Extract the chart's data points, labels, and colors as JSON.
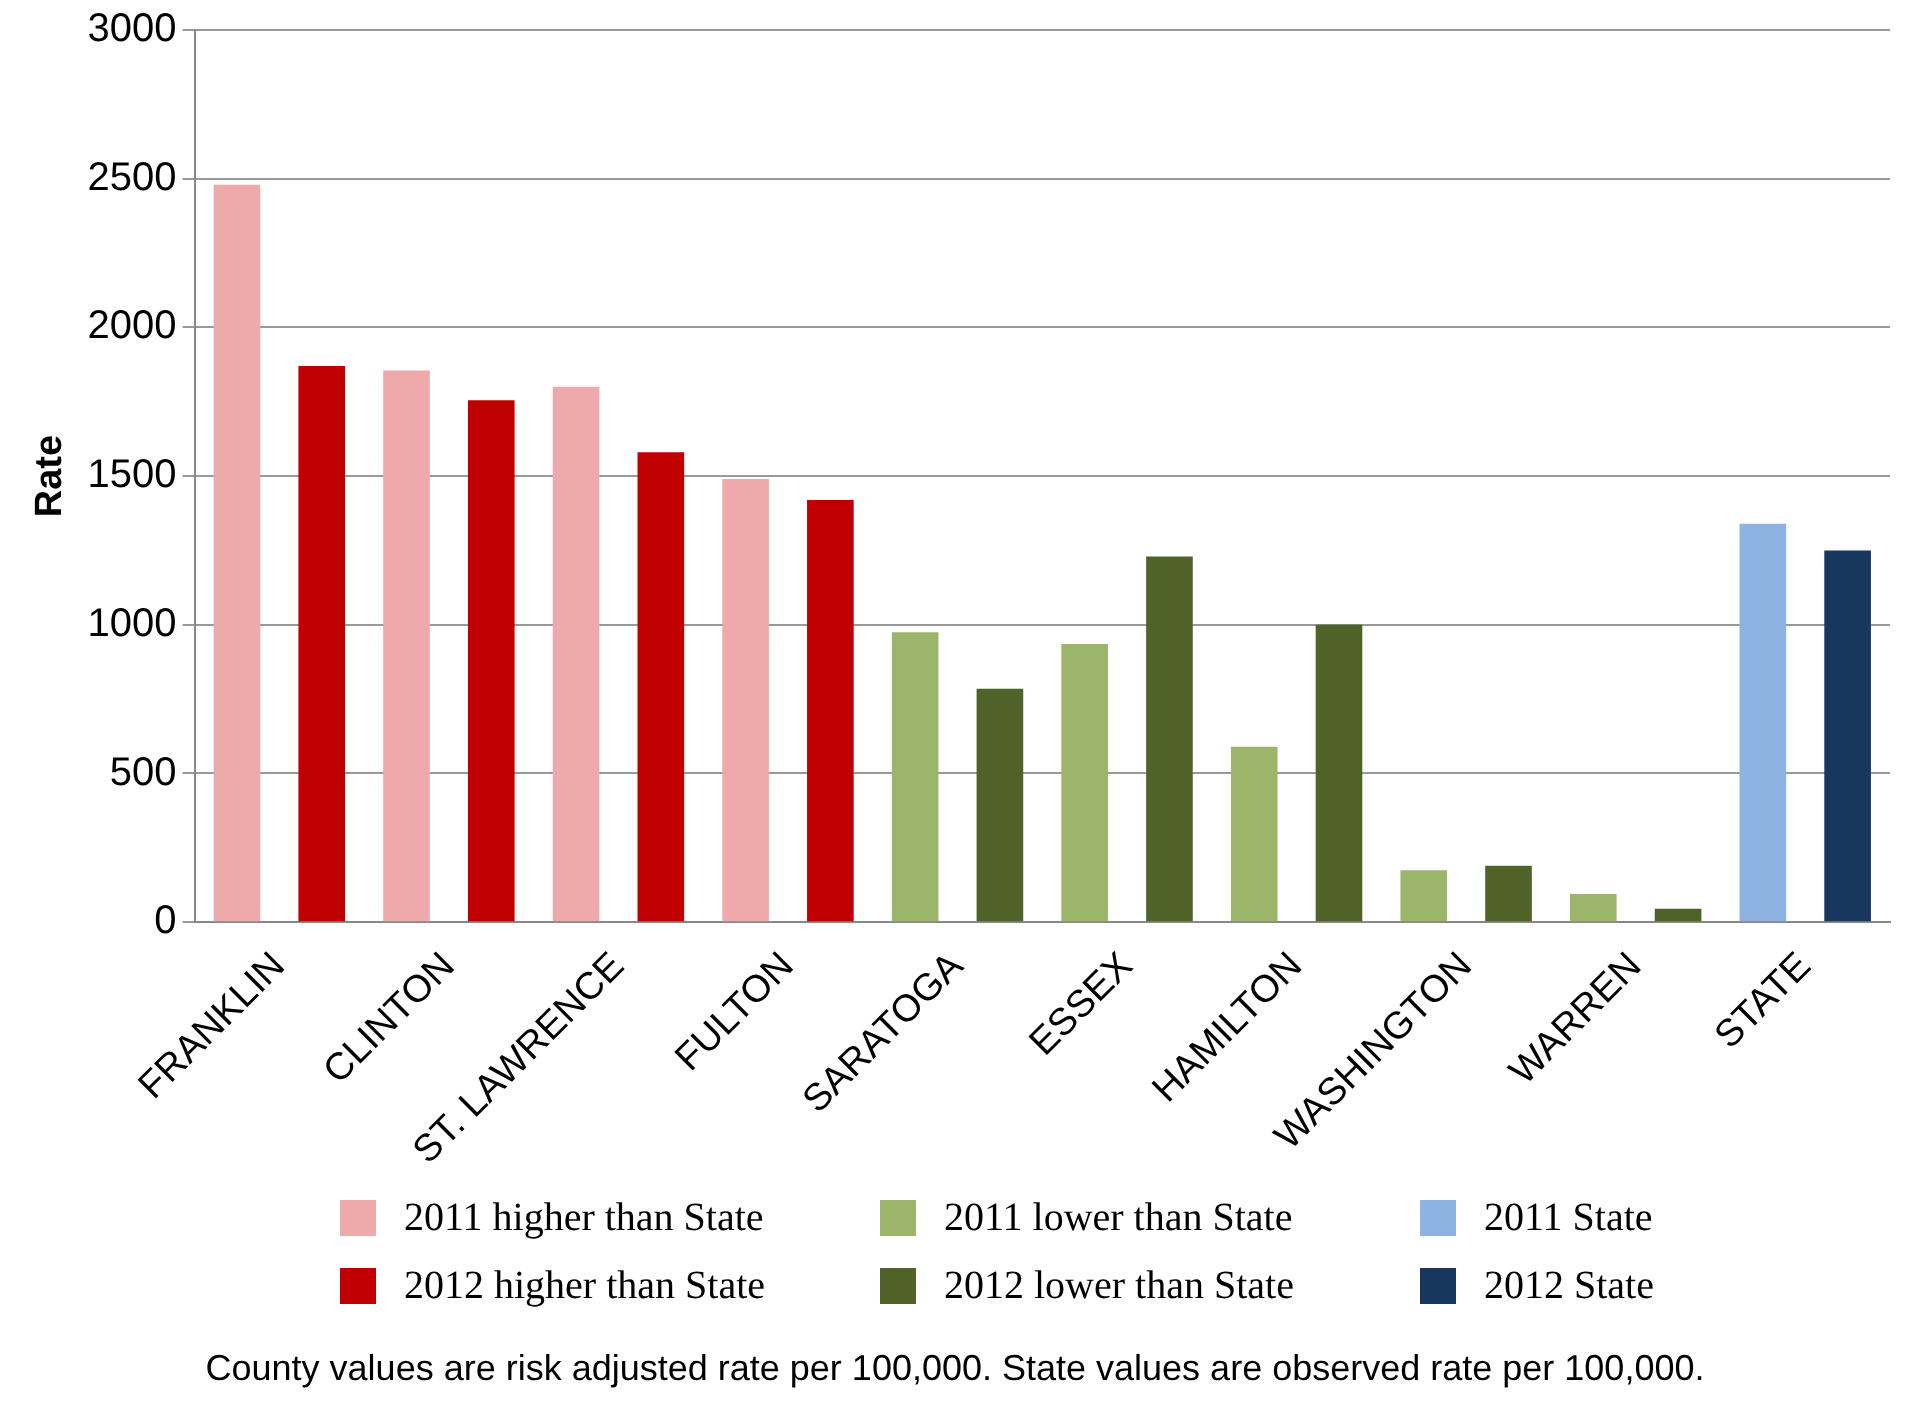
{
  "chart_data": {
    "type": "bar",
    "ylabel": "Rate",
    "categories": [
      "FRANKLIN",
      "CLINTON",
      "ST. LAWRENCE",
      "FULTON",
      "SARATOGA",
      "ESSEX",
      "HAMILTON",
      "WASHINGTON",
      "WARREN",
      "STATE"
    ],
    "series": [
      {
        "name": "2011 higher than State",
        "color": "#eeaaaa",
        "values": [
          2480,
          1855,
          1800,
          1490,
          null,
          null,
          null,
          null,
          null,
          null
        ]
      },
      {
        "name": "2012 higher than State",
        "color": "#c00000",
        "values": [
          1870,
          1755,
          1580,
          1420,
          null,
          null,
          null,
          null,
          null,
          null
        ]
      },
      {
        "name": "2011 lower than State",
        "color": "#9bb66a",
        "values": [
          null,
          null,
          null,
          null,
          975,
          935,
          590,
          175,
          95,
          null
        ]
      },
      {
        "name": "2012 lower than State",
        "color": "#4f6228",
        "values": [
          null,
          null,
          null,
          null,
          785,
          1230,
          1000,
          190,
          45,
          null
        ]
      },
      {
        "name": "2011 State",
        "color": "#8db3e2",
        "values": [
          null,
          null,
          null,
          null,
          null,
          null,
          null,
          null,
          null,
          1340
        ]
      },
      {
        "name": "2012 State",
        "color": "#17375e",
        "values": [
          null,
          null,
          null,
          null,
          null,
          null,
          null,
          null,
          null,
          1250
        ]
      }
    ],
    "ylim": [
      0,
      3000
    ],
    "yticks": [
      0,
      500,
      1000,
      1500,
      2000,
      2500,
      3000
    ],
    "grid": "y",
    "legend": "bottom",
    "annotations": [
      "County values are risk adjusted rate per 100,000. State values are observed rate per 100,000."
    ]
  }
}
